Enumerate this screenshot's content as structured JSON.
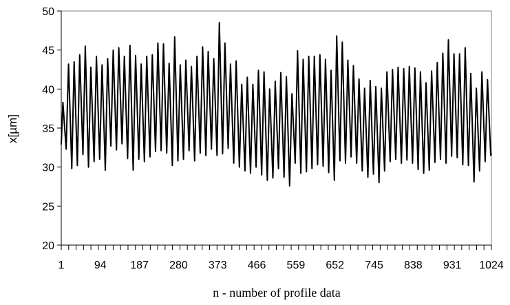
{
  "chart_data": {
    "type": "line",
    "title": "",
    "xlabel": "n - number of profile data",
    "ylabel": "x[µm]",
    "xlim": [
      1,
      1024
    ],
    "ylim": [
      20,
      50
    ],
    "y_ticks": [
      "20",
      "25",
      "30",
      "35",
      "40",
      "45",
      "50"
    ],
    "x_tick_labels": [
      "1",
      "94",
      "187",
      "280",
      "373",
      "466",
      "559",
      "652",
      "745",
      "838",
      "931",
      "1024"
    ],
    "grid": false,
    "legend": "none",
    "line_color": "#000000",
    "series": [
      {
        "peaks": [
          38.3,
          43.2,
          43.5,
          44.4,
          45.5,
          42.8,
          44.2,
          43.1,
          43.9,
          45.0,
          45.3,
          44.2,
          45.6,
          44.3,
          43.2,
          44.2,
          44.4,
          45.9,
          45.8,
          43.3,
          46.7,
          43.1,
          43.7,
          42.9,
          44.2,
          45.4,
          44.8,
          43.9,
          48.5,
          45.9,
          43.2,
          43.6,
          40.6,
          41.5,
          40.6,
          42.4,
          42.2,
          40.0,
          41.0,
          42.1,
          41.6,
          39.4,
          44.9,
          43.8,
          44.2,
          44.2,
          44.4,
          43.8,
          42.4,
          46.8,
          46.0,
          43.7,
          43.0,
          41.3,
          40.1,
          41.1,
          40.3,
          40.1,
          42.2,
          42.5,
          42.8,
          42.6,
          42.9,
          42.7,
          42.2,
          40.8,
          42.3,
          43.4,
          44.6,
          46.3,
          44.5,
          44.5,
          45.3,
          42.0,
          40.1,
          42.2,
          41.2
        ],
        "troughs": [
          32.3,
          29.8,
          30.2,
          31.6,
          30.0,
          30.7,
          31.0,
          29.6,
          32.7,
          32.2,
          33.0,
          31.1,
          29.6,
          31.0,
          30.7,
          31.3,
          32.0,
          32.1,
          31.8,
          30.2,
          30.8,
          31.0,
          32.1,
          30.8,
          31.8,
          31.5,
          32.3,
          31.5,
          31.7,
          32.4,
          30.5,
          30.0,
          29.5,
          29.2,
          30.0,
          29.0,
          28.3,
          28.6,
          29.8,
          28.7,
          27.6,
          30.5,
          29.2,
          29.4,
          29.8,
          30.3,
          30.1,
          29.3,
          28.3,
          30.8,
          30.5,
          31.3,
          30.5,
          29.5,
          28.7,
          29.1,
          28.0,
          29.5,
          30.7,
          31.0,
          30.5,
          30.9,
          30.5,
          29.7,
          29.2,
          29.6,
          30.6,
          31.0,
          30.5,
          31.4,
          31.2,
          30.3,
          30.2,
          28.1,
          29.5,
          30.7,
          31.5
        ]
      }
    ]
  }
}
